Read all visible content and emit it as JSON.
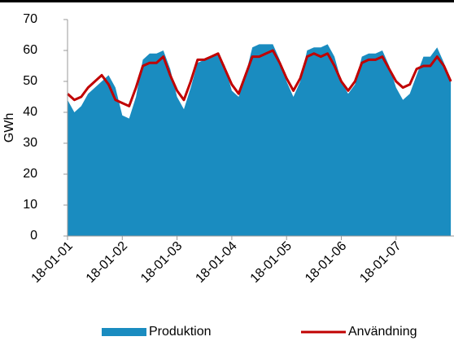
{
  "chart_data": {
    "type": "area-line",
    "y_label": "GWh",
    "categories": [
      "18-01-01",
      null,
      null,
      null,
      null,
      null,
      null,
      null,
      "18-01-02",
      null,
      null,
      null,
      null,
      null,
      null,
      null,
      "18-01-03",
      null,
      null,
      null,
      null,
      null,
      null,
      null,
      "18-01-04",
      null,
      null,
      null,
      null,
      null,
      null,
      null,
      "18-01-05",
      null,
      null,
      null,
      null,
      null,
      null,
      null,
      "18-01-06",
      null,
      null,
      null,
      null,
      null,
      null,
      null,
      "18-01-07",
      null,
      null,
      null,
      null,
      null,
      null,
      null,
      null
    ],
    "series": [
      {
        "name": "Produktion",
        "kind": "area",
        "color": "#1a8cc0",
        "values": [
          44,
          40,
          42,
          46,
          48,
          50,
          52,
          48,
          39,
          38,
          45,
          57,
          59,
          59,
          60,
          54,
          45,
          41,
          48,
          56,
          57,
          58,
          59,
          55,
          47,
          45,
          52,
          61,
          62,
          62,
          62,
          57,
          50,
          45,
          50,
          60,
          61,
          61,
          62,
          58,
          50,
          46,
          49,
          58,
          59,
          59,
          60,
          55,
          48,
          44,
          46,
          52,
          58,
          58,
          61,
          56,
          50
        ]
      },
      {
        "name": "Användning",
        "kind": "line",
        "color": "#c00000",
        "values": [
          46,
          44,
          45,
          48,
          50,
          52,
          49,
          44,
          43,
          42,
          48,
          55,
          56,
          56,
          58,
          52,
          47,
          44,
          50,
          57,
          57,
          58,
          59,
          54,
          49,
          46,
          52,
          58,
          58,
          59,
          60,
          56,
          51,
          47,
          51,
          58,
          59,
          58,
          59,
          55,
          50,
          47,
          50,
          56,
          57,
          57,
          58,
          54,
          50,
          48,
          49,
          54,
          55,
          55,
          58,
          55,
          50
        ]
      }
    ],
    "ylim": [
      0,
      70
    ],
    "yticks": [
      0,
      10,
      20,
      30,
      40,
      50,
      60,
      70
    ]
  }
}
